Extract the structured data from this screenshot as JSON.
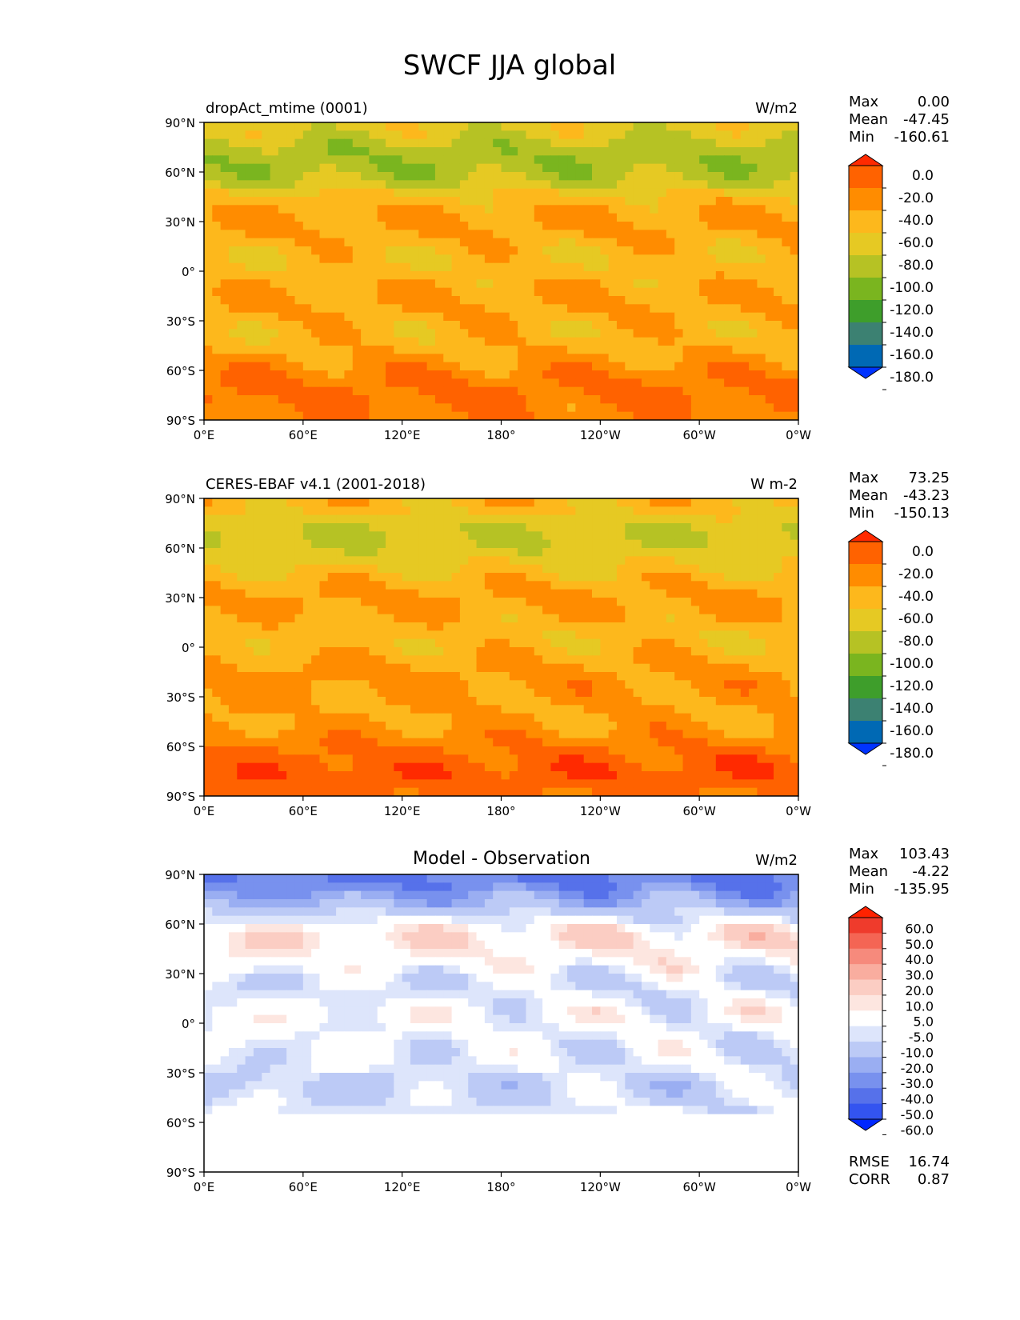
{
  "title": "SWCF JJA global",
  "lat_ticks": [
    "90°N",
    "60°N",
    "30°N",
    "0°",
    "30°S",
    "60°S",
    "90°S"
  ],
  "lon_ticks": [
    "0°E",
    "60°E",
    "120°E",
    "180°",
    "120°W",
    "60°W",
    "0°W"
  ],
  "panels": [
    {
      "left_title": "dropAct_mtime (0001)",
      "center_title": "",
      "units": "W/m2",
      "stats_labels": [
        "Max",
        "Mean",
        "Min"
      ],
      "stats_values": [
        "0.00",
        "-47.45",
        "-160.61"
      ],
      "colorbar_labels": [
        "0.0",
        "-20.0",
        "-40.0",
        "-60.0",
        "-80.0",
        "-100.0",
        "-120.0",
        "-140.0",
        "-160.0",
        "-180.0"
      ]
    },
    {
      "left_title": "CERES-EBAF v4.1 (2001-2018)",
      "center_title": "",
      "units": "W m-2",
      "stats_labels": [
        "Max",
        "Mean",
        "Min"
      ],
      "stats_values": [
        "73.25",
        "-43.23",
        "-150.13"
      ],
      "colorbar_labels": [
        "0.0",
        "-20.0",
        "-40.0",
        "-60.0",
        "-80.0",
        "-100.0",
        "-120.0",
        "-140.0",
        "-160.0",
        "-180.0"
      ]
    },
    {
      "left_title": "",
      "center_title": "Model - Observation",
      "units": "W/m2",
      "stats_labels": [
        "Max",
        "Mean",
        "Min"
      ],
      "stats_values": [
        "103.43",
        "-4.22",
        "-135.95"
      ],
      "colorbar_labels": [
        "60.0",
        "50.0",
        "40.0",
        "30.0",
        "20.0",
        "10.0",
        "5.0",
        "-5.0",
        "-10.0",
        "-20.0",
        "-30.0",
        "-40.0",
        "-50.0",
        "-60.0"
      ],
      "extra_labels": [
        "RMSE",
        "CORR"
      ],
      "extra_values": [
        "16.74",
        "0.87"
      ]
    }
  ],
  "colors": {
    "swcf_scale": [
      "#ff2a00",
      "#ff6200",
      "#ff8c00",
      "#fdb81c",
      "#e6c923",
      "#b6c224",
      "#7ab51f",
      "#3e9e2b",
      "#3c8172",
      "#0069b4",
      "#0033ff"
    ],
    "diff_scale": [
      "#ff2200",
      "#ef3b2c",
      "#f46554",
      "#f68a7c",
      "#f9ad9f",
      "#fbcdc3",
      "#fde6e0",
      "#ffffff",
      "#dde5fb",
      "#bccaf6",
      "#9aaef2",
      "#7891ee",
      "#5671ea",
      "#3354f0",
      "#0027ff"
    ]
  },
  "chart_data": [
    {
      "type": "heatmap",
      "title": "dropAct_mtime (0001)",
      "units": "W/m2",
      "x_range": [
        0,
        360
      ],
      "y_range": [
        -90,
        90
      ],
      "zonal_mean_by_lat": {
        "lat": [
          85,
          75,
          65,
          55,
          45,
          35,
          25,
          15,
          5,
          -5,
          -15,
          -25,
          -35,
          -45,
          -55,
          -65,
          -75,
          -85
        ],
        "value": [
          -70,
          -90,
          -95,
          -85,
          -55,
          -40,
          -38,
          -50,
          -55,
          -48,
          -40,
          -40,
          -50,
          -48,
          -35,
          -22,
          -15,
          -25
        ]
      },
      "stats": {
        "Max": 0.0,
        "Mean": -47.45,
        "Min": -160.61
      },
      "colorbar_levels": [
        0,
        -20,
        -40,
        -60,
        -80,
        -100,
        -120,
        -140,
        -160,
        -180
      ]
    },
    {
      "type": "heatmap",
      "title": "CERES-EBAF v4.1 (2001-2018)",
      "units": "W m-2",
      "x_range": [
        0,
        360
      ],
      "y_range": [
        -90,
        90
      ],
      "zonal_mean_by_lat": {
        "lat": [
          85,
          75,
          65,
          55,
          45,
          35,
          25,
          15,
          5,
          -5,
          -15,
          -25,
          -35,
          -45,
          -55,
          -65,
          -75,
          -85
        ],
        "value": [
          -50,
          -75,
          -80,
          -70,
          -55,
          -40,
          -35,
          -48,
          -55,
          -45,
          -35,
          -35,
          -40,
          -40,
          -28,
          -15,
          -5,
          -15
        ]
      },
      "stats": {
        "Max": 73.25,
        "Mean": -43.23,
        "Min": -150.13
      },
      "colorbar_levels": [
        0,
        -20,
        -40,
        -60,
        -80,
        -100,
        -120,
        -140,
        -160,
        -180
      ]
    },
    {
      "type": "heatmap",
      "title": "Model - Observation",
      "units": "W/m2",
      "x_range": [
        0,
        360
      ],
      "y_range": [
        -90,
        90
      ],
      "zonal_mean_by_lat": {
        "lat": [
          85,
          75,
          65,
          55,
          45,
          35,
          25,
          15,
          5,
          -5,
          -15,
          -25,
          -35,
          -45,
          -55,
          -65,
          -75,
          -85
        ],
        "value": [
          -40,
          -25,
          -10,
          8,
          6,
          0,
          -8,
          -6,
          0,
          -4,
          -5,
          -5,
          -12,
          -10,
          -5,
          0,
          0,
          0
        ]
      },
      "stats": {
        "Max": 103.43,
        "Mean": -4.22,
        "Min": -135.95,
        "RMSE": 16.74,
        "CORR": 0.87
      },
      "colorbar_levels": [
        60,
        50,
        40,
        30,
        20,
        10,
        5,
        -5,
        -10,
        -20,
        -30,
        -40,
        -50,
        -60
      ]
    }
  ]
}
